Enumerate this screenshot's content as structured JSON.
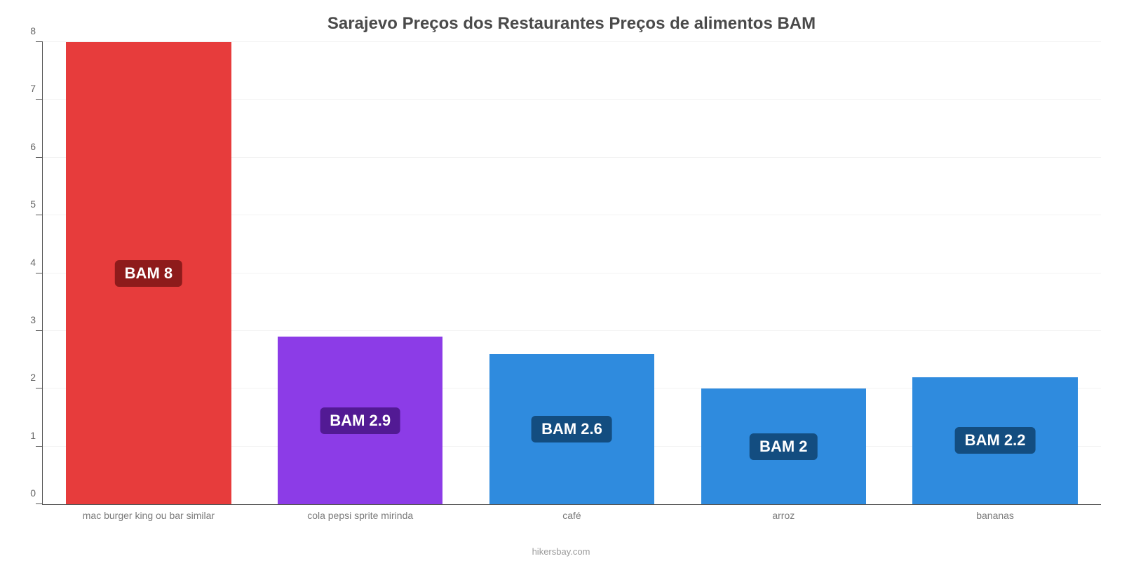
{
  "chart": {
    "type": "bar",
    "title": "Sarajevo Preços dos Restaurantes Preços de alimentos BAM",
    "title_fontsize": 24,
    "title_color": "#4a4a4a",
    "background_color": "#ffffff",
    "grid_color": "#f2f2f2",
    "axis_color": "#555555",
    "ylim": [
      0,
      8
    ],
    "ytick_step": 1,
    "yticks": [
      0,
      1,
      2,
      3,
      4,
      5,
      6,
      7,
      8
    ],
    "label_fontsize": 14,
    "axis_label_color": "#666666",
    "xlabel_color": "#7a7a7a",
    "bar_width": 0.78,
    "categories": [
      "mac burger king ou bar similar",
      "cola pepsi sprite mirinda",
      "café",
      "arroz",
      "bananas"
    ],
    "values": [
      8,
      2.9,
      2.6,
      2,
      2.2
    ],
    "value_labels": [
      "BAM 8",
      "BAM 2.9",
      "BAM 2.6",
      "BAM 2",
      "BAM 2.2"
    ],
    "bar_colors": [
      "#e73c3c",
      "#8c3ce7",
      "#2f8bde",
      "#2f8bde",
      "#2f8bde"
    ],
    "badge_colors": [
      "#8e1b1b",
      "#521a94",
      "#134d80",
      "#134d80",
      "#134d80"
    ],
    "badge_fontsize": 22,
    "badge_text_color": "#ffffff",
    "attribution": "hikersbay.com",
    "attribution_color": "#9a9a9a"
  }
}
